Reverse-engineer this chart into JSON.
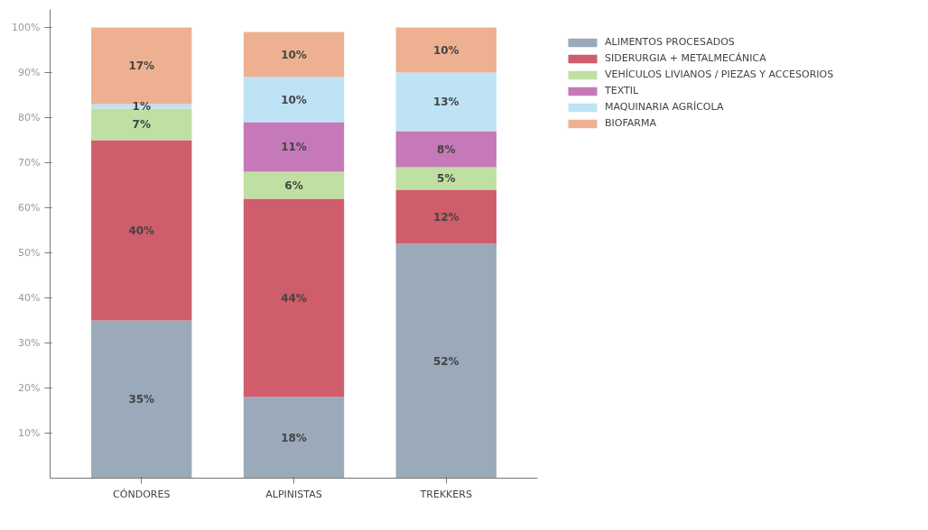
{
  "chart_data": {
    "type": "bar",
    "stacked": true,
    "data_labels": true,
    "legend": "right",
    "grid": false,
    "categories": [
      "CÓNDORES",
      "ALPINISTAS",
      "TREKKERS"
    ],
    "ylim": [
      0,
      104
    ],
    "yticks": [
      {
        "value": 10,
        "label": "10%"
      },
      {
        "value": 20,
        "label": "20%"
      },
      {
        "value": 30,
        "label": "30%"
      },
      {
        "value": 40,
        "label": "40%"
      },
      {
        "value": 50,
        "label": "50%"
      },
      {
        "value": 60,
        "label": "60%"
      },
      {
        "value": 70,
        "label": "70%"
      },
      {
        "value": 80,
        "label": "80%"
      },
      {
        "value": 90,
        "label": "90%"
      },
      {
        "value": 100,
        "label": "100%"
      }
    ],
    "series": [
      {
        "name": "ALIMENTOS PROCESADOS",
        "color": "#9aaabb",
        "values": [
          35,
          18,
          52
        ],
        "value_labels": [
          "35%",
          "18%",
          "52%"
        ]
      },
      {
        "name": "SIDERURGIA + METALMECÁNICA",
        "color": "#cf5d6b",
        "values": [
          40,
          44,
          12
        ],
        "value_labels": [
          "40%",
          "44%",
          "12%"
        ]
      },
      {
        "name": "VEHÍCULOS LIVIANOS / PIEZAS Y ACCESORIOS",
        "color": "#bfe0a2",
        "values": [
          7,
          6,
          5
        ],
        "value_labels": [
          "7%",
          "6%",
          "5%"
        ]
      },
      {
        "name": "TEXTIL",
        "color": "#c679b8",
        "values": [
          null,
          11,
          8
        ],
        "value_labels": [
          null,
          "11%",
          "8%"
        ]
      },
      {
        "name": "MAQUINARIA AGRÍCOLA",
        "color": "#bde3f5",
        "values": [
          1,
          10,
          13
        ],
        "value_labels": [
          "1%",
          "10%",
          "13%"
        ]
      },
      {
        "name": "BIOFARMA",
        "color": "#edb192",
        "values": [
          17,
          10,
          10
        ],
        "value_labels": [
          "17%",
          "10%",
          "10%"
        ]
      }
    ]
  }
}
